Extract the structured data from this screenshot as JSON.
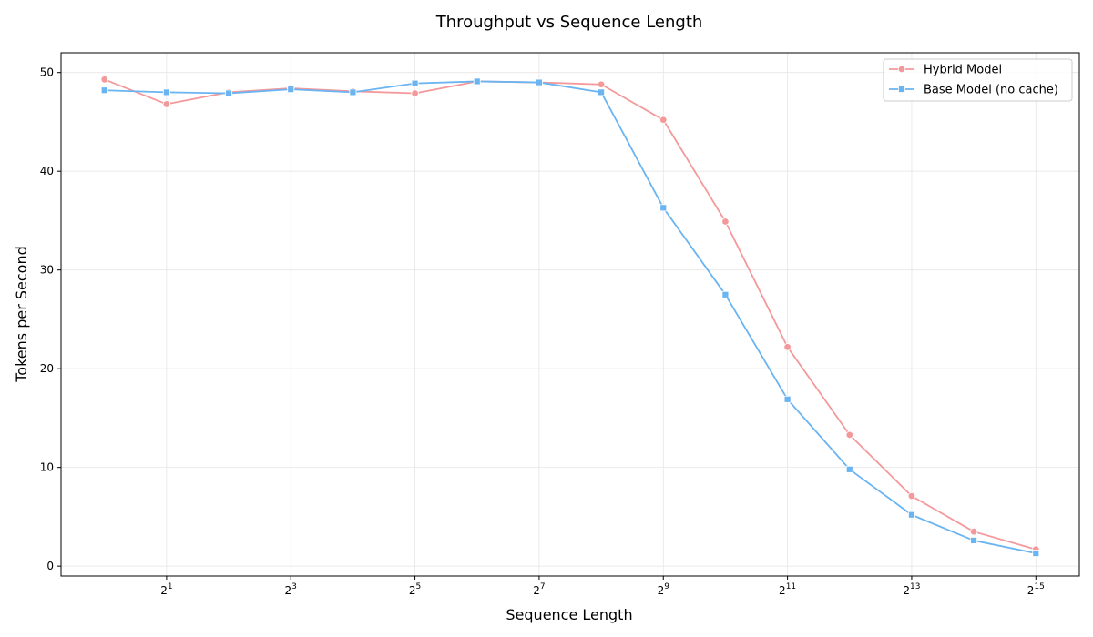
{
  "chart_data": {
    "type": "line",
    "title": "Throughput vs Sequence Length",
    "xlabel": "Sequence Length",
    "ylabel": "Tokens per Second",
    "x_scale": "log2",
    "x": [
      1,
      2,
      4,
      8,
      16,
      32,
      64,
      128,
      256,
      512,
      1024,
      2048,
      4096,
      8192,
      16384,
      32768
    ],
    "x_ticks": [
      {
        "value": 2,
        "base": "2",
        "exp": "1"
      },
      {
        "value": 8,
        "base": "2",
        "exp": "3"
      },
      {
        "value": 32,
        "base": "2",
        "exp": "5"
      },
      {
        "value": 128,
        "base": "2",
        "exp": "7"
      },
      {
        "value": 512,
        "base": "2",
        "exp": "9"
      },
      {
        "value": 2048,
        "base": "2",
        "exp": "11"
      },
      {
        "value": 8192,
        "base": "2",
        "exp": "13"
      },
      {
        "value": 32768,
        "base": "2",
        "exp": "15"
      }
    ],
    "y_ticks": [
      0,
      10,
      20,
      30,
      40,
      50
    ],
    "ylim": [
      -1,
      52
    ],
    "grid": true,
    "legend_position": "top-right",
    "series": [
      {
        "name": "Hybrid Model",
        "color": "#f4999b",
        "marker": "circle",
        "values": [
          49.3,
          46.8,
          48.0,
          48.4,
          48.1,
          47.9,
          49.1,
          49.0,
          48.8,
          45.2,
          34.9,
          22.2,
          13.3,
          7.1,
          3.5,
          1.7
        ]
      },
      {
        "name": "Base Model (no cache)",
        "color": "#6ab4f2",
        "marker": "square",
        "values": [
          48.2,
          48.0,
          47.9,
          48.3,
          48.0,
          48.9,
          49.1,
          49.0,
          48.0,
          36.3,
          27.5,
          16.9,
          9.8,
          5.2,
          2.6,
          1.3
        ]
      }
    ]
  }
}
